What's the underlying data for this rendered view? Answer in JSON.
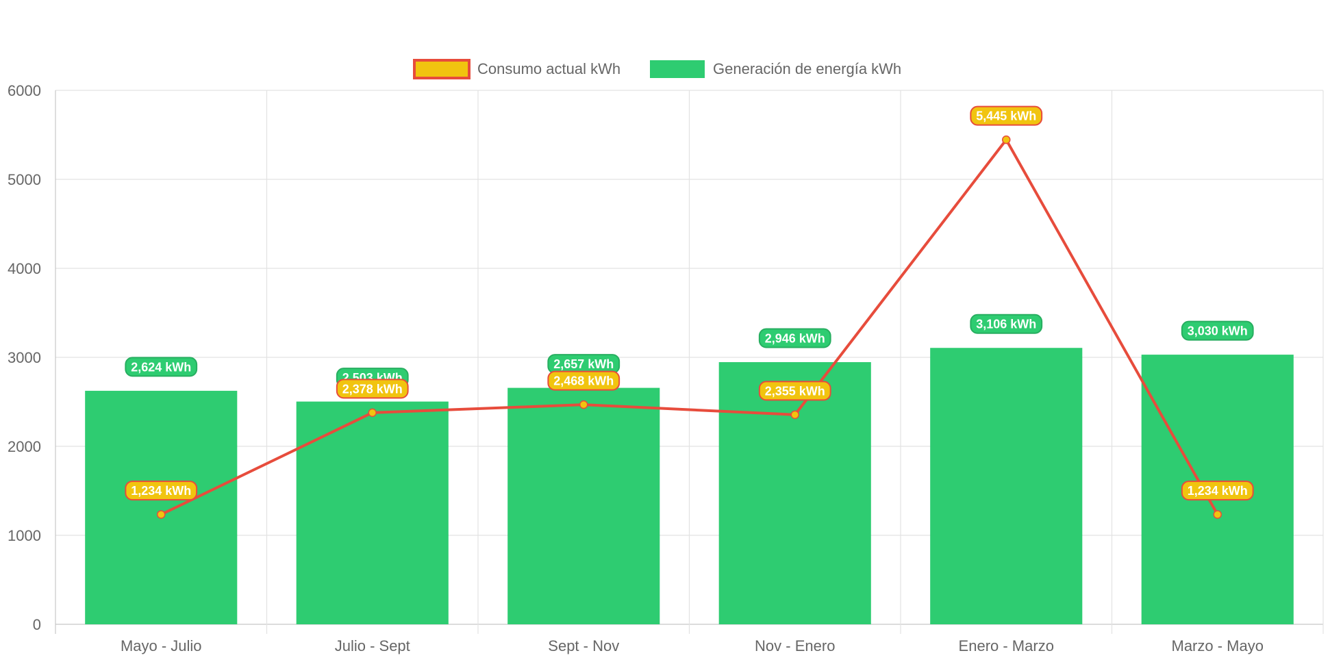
{
  "chart_data": {
    "type": "bar",
    "categories": [
      "Mayo - Julio",
      "Julio - Sept",
      "Sept - Nov",
      "Nov - Enero",
      "Enero - Marzo",
      "Marzo - Mayo"
    ],
    "series": [
      {
        "name": "Consumo actual kWh",
        "type": "line",
        "values": [
          1234,
          2378,
          2468,
          2355,
          5445,
          1234
        ],
        "labels": [
          "1,234 kWh",
          "2,378 kWh",
          "2,468 kWh",
          "2,355 kWh",
          "5,445 kWh",
          "1,234 kWh"
        ],
        "color": "#e74c3c",
        "fill": "#f1c40f"
      },
      {
        "name": "Generación de energía kWh",
        "type": "bar",
        "values": [
          2624,
          2503,
          2657,
          2946,
          3106,
          3030
        ],
        "labels": [
          "2,624 kWh",
          "2,503 kWh",
          "2,657 kWh",
          "2,946 kWh",
          "3,106 kWh",
          "3,030 kWh"
        ],
        "color": "#2ecc71"
      }
    ],
    "ylim": [
      0,
      6000
    ],
    "yticks": [
      "0",
      "1000",
      "2000",
      "3000",
      "4000",
      "5000",
      "6000"
    ],
    "legend": "top-center",
    "grid": true
  }
}
